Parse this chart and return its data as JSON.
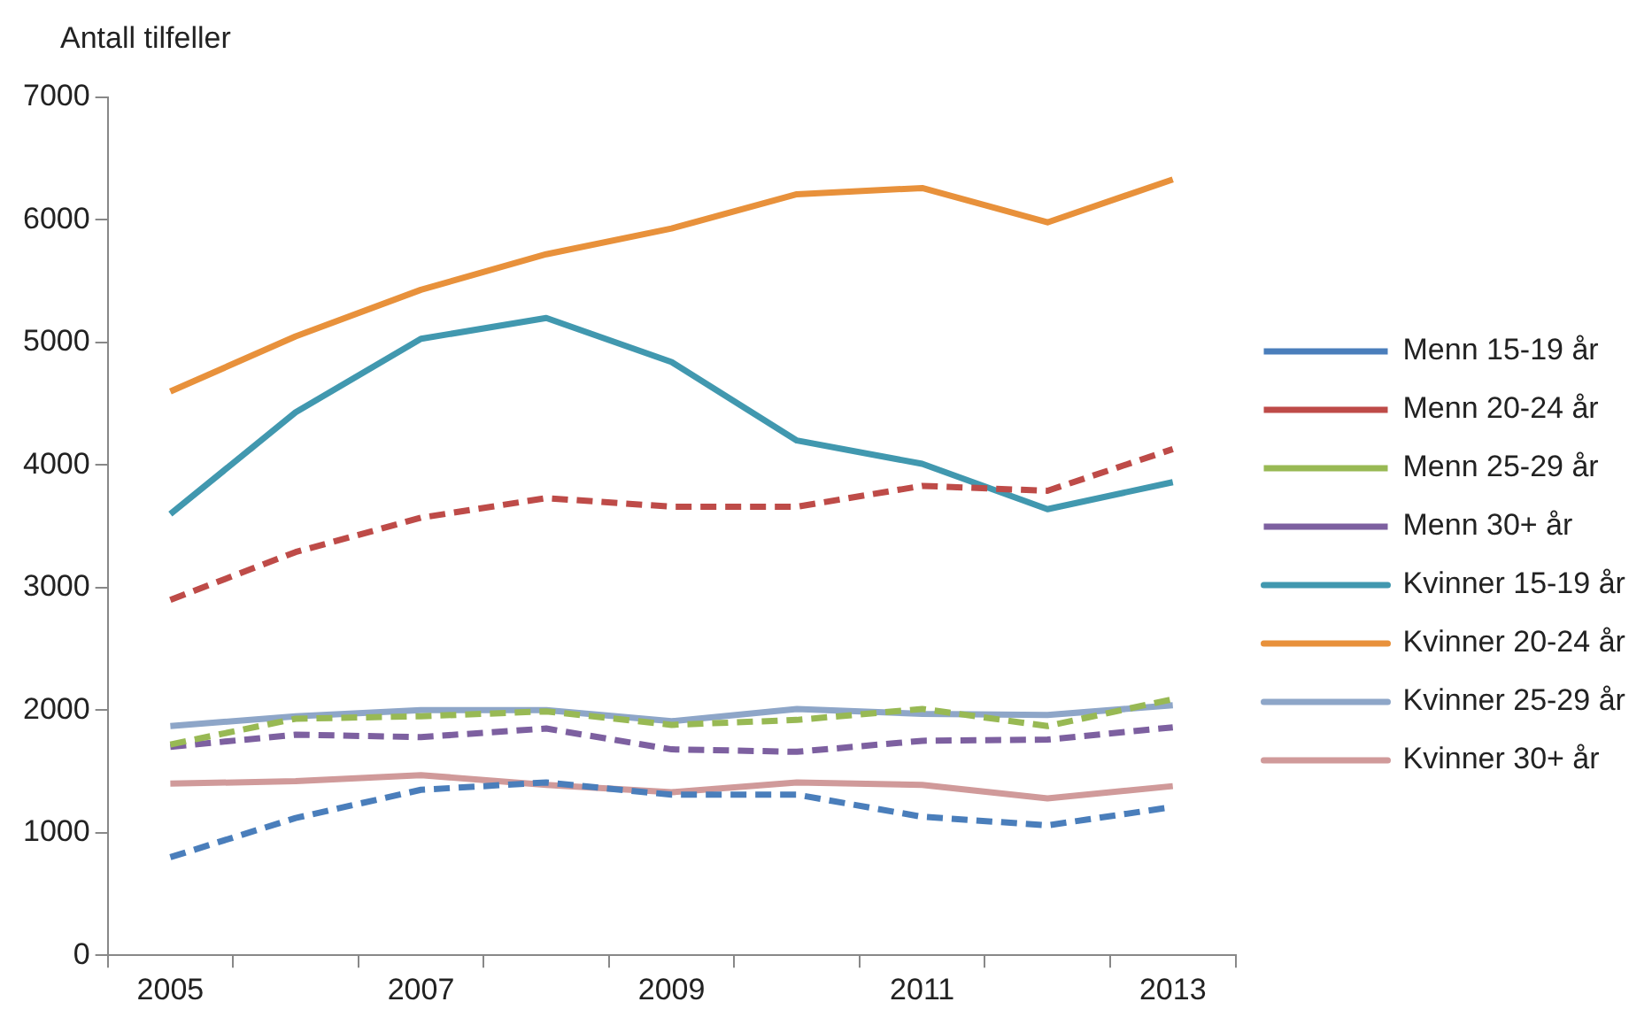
{
  "chart_data": {
    "type": "line",
    "ylabel": "Antall tilfeller",
    "categories": [
      "2005",
      null,
      "2007",
      null,
      "2009",
      null,
      "2011",
      null,
      "2013"
    ],
    "ylim": [
      0,
      7000
    ],
    "yticks": [
      0,
      1000,
      2000,
      3000,
      4000,
      5000,
      6000,
      7000
    ],
    "grid": false,
    "legend": "right",
    "marker": "none",
    "series": [
      {
        "name": "Menn 15-19 år",
        "color": "#4a7ebb",
        "line_style": "dashed",
        "values": [
          800,
          1120,
          1350,
          1410,
          1310,
          1310,
          1130,
          1060,
          1210
        ]
      },
      {
        "name": "Menn 20-24 år",
        "color": "#be4b48",
        "line_style": "dashed",
        "values": [
          2900,
          3290,
          3570,
          3730,
          3660,
          3660,
          3830,
          3790,
          4130
        ]
      },
      {
        "name": "Menn 25-29 år",
        "color": "#98b954",
        "line_style": "dashed",
        "values": [
          1720,
          1930,
          1950,
          1990,
          1880,
          1920,
          2010,
          1870,
          2090
        ]
      },
      {
        "name": "Menn 30+ år",
        "color": "#7d60a0",
        "line_style": "dashed",
        "values": [
          1700,
          1800,
          1780,
          1850,
          1680,
          1660,
          1750,
          1760,
          1860
        ]
      },
      {
        "name": "Kvinner 15-19 år",
        "color": "#4198af",
        "line_style": "solid",
        "values": [
          3600,
          4430,
          5030,
          5200,
          4840,
          4200,
          4010,
          3640,
          3860
        ]
      },
      {
        "name": "Kvinner 20-24 år",
        "color": "#e8913b",
        "line_style": "solid",
        "values": [
          4600,
          5050,
          5430,
          5720,
          5930,
          6210,
          6260,
          5980,
          6330
        ]
      },
      {
        "name": "Kvinner 25-29 år",
        "color": "#8ea6c8",
        "line_style": "solid",
        "values": [
          1870,
          1950,
          2000,
          2000,
          1910,
          2010,
          1970,
          1960,
          2040
        ]
      },
      {
        "name": "Kvinner 30+ år",
        "color": "#d09a9a",
        "line_style": "solid",
        "values": [
          1400,
          1420,
          1470,
          1390,
          1330,
          1410,
          1390,
          1280,
          1380
        ]
      }
    ]
  }
}
